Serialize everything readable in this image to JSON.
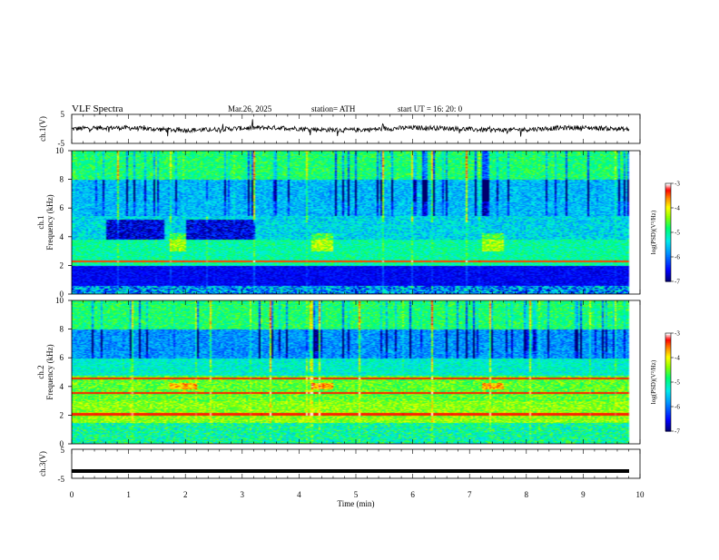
{
  "header": {
    "title": "VLF  Spectra",
    "date": "Mar.26, 2025",
    "station": "station= ATH",
    "start": "start  UT  =    16: 20: 0"
  },
  "chart_data": [
    {
      "type": "line",
      "panel": "ch1-waveform",
      "ylabel": "ch.1(V)",
      "ylim": [
        -5,
        5
      ],
      "yticks": [
        "5",
        "-5"
      ],
      "xlim": [
        0,
        10
      ],
      "xlabel": "",
      "description_values": {
        "mean_level": 0,
        "noise_amplitude": 1
      }
    },
    {
      "type": "heatmap",
      "panel": "ch1-spectrogram",
      "ylabel": "ch.1\nFrequency (kHz)",
      "ylabel_lines": [
        "ch.1",
        "Frequency (kHz)"
      ],
      "ylim": [
        0,
        10
      ],
      "yticks": [
        "0",
        "2",
        "4",
        "6",
        "8",
        "10"
      ],
      "xlim": [
        0,
        10
      ],
      "colorbar": {
        "label": "log(PSD)(V²/Hz)",
        "range": [
          -7,
          -3
        ],
        "ticks": [
          "-3",
          "-4",
          "-5",
          "-6",
          "-7"
        ]
      }
    },
    {
      "type": "heatmap",
      "panel": "ch2-spectrogram",
      "ylabel": "ch.2\nFrequency (kHz)",
      "ylabel_lines": [
        "ch.2",
        "Frequency (kHz)"
      ],
      "ylim": [
        0,
        10
      ],
      "yticks": [
        "0",
        "2",
        "4",
        "6",
        "8",
        "10"
      ],
      "xlim": [
        0,
        10
      ],
      "colorbar": {
        "label": "log(PSD)(V²/Hz)",
        "range": [
          -7,
          -3
        ],
        "ticks": [
          "-3",
          "-4",
          "-5",
          "-6",
          "-7"
        ]
      }
    },
    {
      "type": "line",
      "panel": "ch3-waveform",
      "ylabel": "ch.3(V)",
      "ylim": [
        -5,
        5
      ],
      "yticks": [
        "5",
        "-5"
      ],
      "xlim": [
        0,
        10
      ],
      "xlabel": "Time  (min)",
      "xticks": [
        "0",
        "1",
        "2",
        "3",
        "4",
        "5",
        "6",
        "7",
        "8",
        "9",
        "10"
      ],
      "description_values": {
        "mean_level": -2.5
      }
    }
  ],
  "colors": {
    "colormap": [
      "#000080",
      "#0000ff",
      "#00a0ff",
      "#00ffff",
      "#00ff60",
      "#80ff00",
      "#ffff00",
      "#ff8000",
      "#ff0000",
      "#ffffff"
    ]
  }
}
